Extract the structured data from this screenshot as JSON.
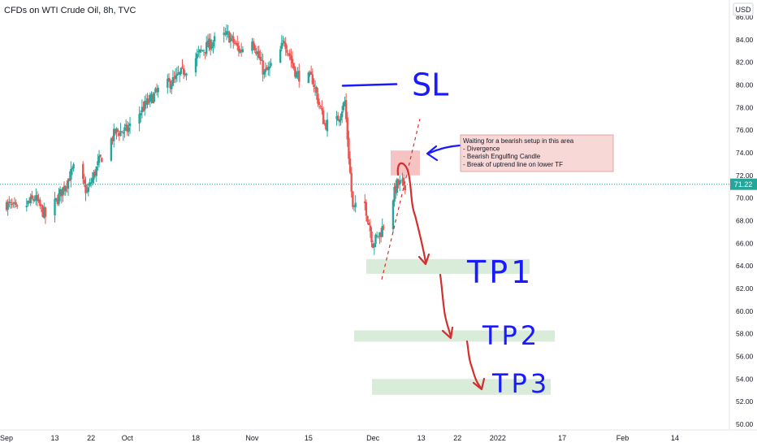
{
  "header": {
    "symbol_title": "CFDs on WTI Crude Oil, 8h, TVC",
    "currency_label": "USD"
  },
  "chart_data": {
    "type": "candlestick",
    "title": "CFDs on WTI Crude Oil, 8h, TVC",
    "ylim": [
      50,
      86
    ],
    "y_ticks": [
      50,
      52,
      54,
      56,
      58,
      60,
      62,
      64,
      66,
      68,
      70,
      72,
      74,
      76,
      78,
      80,
      82,
      84,
      86
    ],
    "y_tick_labels": [
      "50.00",
      "52.00",
      "54.00",
      "56.00",
      "58.00",
      "60.00",
      "62.00",
      "64.00",
      "66.00",
      "68.00",
      "70.00",
      "72.00",
      "74.00",
      "76.00",
      "78.00",
      "80.00",
      "82.00",
      "84.00",
      "86.00"
    ],
    "x_tick_labels": [
      "Sep",
      "13",
      "22",
      "Oct",
      "18",
      "Nov",
      "15",
      "Dec",
      "13",
      "22",
      "2022",
      "17",
      "Feb",
      "14"
    ],
    "x_tick_dates": [
      "2021-09-01",
      "2021-09-13",
      "2021-09-22",
      "2021-10-01",
      "2021-10-18",
      "2021-11-01",
      "2021-11-15",
      "2021-12-01",
      "2021-12-13",
      "2021-12-22",
      "2022-01-01",
      "2022-01-17",
      "2022-02-01",
      "2022-02-14"
    ],
    "last_price": 71.22,
    "last_price_label": "71.22",
    "colors": {
      "up": "#26a69a",
      "down": "#ef5350",
      "price_line": "#26a69a",
      "annotation": "#1a1aff",
      "arrow": "#d32f2f",
      "target_zone": "#d9ecd9",
      "entry_zone": "#f4b7b7"
    },
    "price_path": [
      {
        "date": "2021-09-01",
        "close": 69.5
      },
      {
        "date": "2021-09-04",
        "close": 68.8
      },
      {
        "date": "2021-09-08",
        "close": 70.0
      },
      {
        "date": "2021-09-11",
        "close": 68.2
      },
      {
        "date": "2021-09-15",
        "close": 70.8
      },
      {
        "date": "2021-09-18",
        "close": 72.8
      },
      {
        "date": "2021-09-21",
        "close": 70.5
      },
      {
        "date": "2021-09-24",
        "close": 73.2
      },
      {
        "date": "2021-09-28",
        "close": 75.8
      },
      {
        "date": "2021-10-01",
        "close": 76.0
      },
      {
        "date": "2021-10-05",
        "close": 78.0
      },
      {
        "date": "2021-10-09",
        "close": 79.6
      },
      {
        "date": "2021-10-13",
        "close": 80.5
      },
      {
        "date": "2021-10-17",
        "close": 82.0
      },
      {
        "date": "2021-10-20",
        "close": 83.2
      },
      {
        "date": "2021-10-23",
        "close": 84.0
      },
      {
        "date": "2021-10-26",
        "close": 84.4
      },
      {
        "date": "2021-10-29",
        "close": 83.0
      },
      {
        "date": "2021-11-01",
        "close": 84.2
      },
      {
        "date": "2021-11-04",
        "close": 81.0
      },
      {
        "date": "2021-11-07",
        "close": 82.0
      },
      {
        "date": "2021-11-09",
        "close": 84.0
      },
      {
        "date": "2021-11-12",
        "close": 80.9
      },
      {
        "date": "2021-11-16",
        "close": 80.5
      },
      {
        "date": "2021-11-19",
        "close": 76.5
      },
      {
        "date": "2021-11-22",
        "close": 76.8
      },
      {
        "date": "2021-11-24",
        "close": 78.5
      },
      {
        "date": "2021-11-26",
        "close": 69.0
      },
      {
        "date": "2021-11-29",
        "close": 69.5
      },
      {
        "date": "2021-12-01",
        "close": 66.0
      },
      {
        "date": "2021-12-03",
        "close": 67.0
      },
      {
        "date": "2021-12-05",
        "close": 69.0
      },
      {
        "date": "2021-12-07",
        "close": 71.2
      },
      {
        "date": "2021-12-09",
        "close": 71.22
      }
    ],
    "drawings": {
      "stop_loss": {
        "label": "SL",
        "price": 80.0
      },
      "entry_zone": {
        "from": 72.0,
        "to": 74.2
      },
      "trend_line": {
        "from_price": 62.8,
        "to_price": 77.0
      },
      "targets": [
        {
          "label": "TP1",
          "from": 63.3,
          "to": 64.6
        },
        {
          "label": "TP2",
          "from": 57.3,
          "to": 58.3
        },
        {
          "label": "TP3",
          "from": 52.6,
          "to": 54.0
        }
      ],
      "note": {
        "lines": [
          "Waiting for a bearish setup in this area",
          "- Divergence",
          "- Bearish Engulfing Candle",
          "- Break of uptrend line on lower TF"
        ]
      }
    }
  }
}
